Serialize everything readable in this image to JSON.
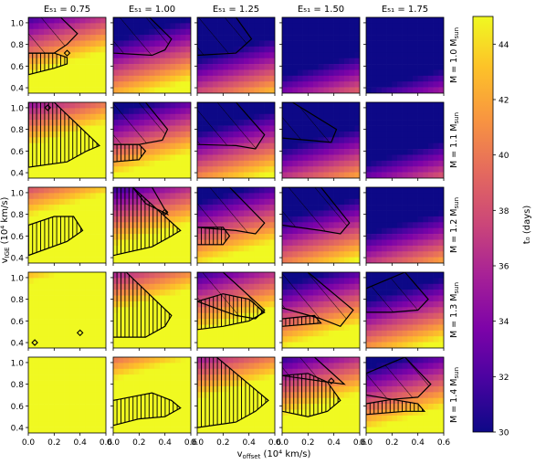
{
  "chart_data": {
    "type": "heatmap",
    "columns": [
      {
        "label": "E₅₁ = 0.75"
      },
      {
        "label": "E₅₁ = 1.00"
      },
      {
        "label": "E₅₁ = 1.25"
      },
      {
        "label": "E₅₁ = 1.50"
      },
      {
        "label": "E₅₁ = 1.75"
      }
    ],
    "rows": [
      {
        "label": "M = 1.0 M_sun"
      },
      {
        "label": "M = 1.1 M_sun"
      },
      {
        "label": "M = 1.2 M_sun"
      },
      {
        "label": "M = 1.3 M_sun"
      },
      {
        "label": "M = 1.4 M_sun"
      }
    ],
    "xlabel": "v_offset (10⁴ km/s)",
    "ylabel": "v_IGE (10⁴ km/s)",
    "xlim": [
      0.0,
      0.6
    ],
    "ylim": [
      0.35,
      1.05
    ],
    "xticks": [
      "0.0",
      "0.2",
      "0.4",
      "0.6"
    ],
    "yticks": [
      "0.4",
      "0.6",
      "0.8",
      "1.0"
    ],
    "colorbar": {
      "label": "t₀ (days)",
      "min": 30,
      "max": 45,
      "ticks": [
        "30",
        "32",
        "34",
        "36",
        "38",
        "40",
        "42",
        "44"
      ],
      "colormap": "plasma"
    },
    "grid": "off",
    "cell_pattern": "t0 increases with v_offset and decreases with v_IGE; higher E51 lowers t0 and higher M raises it; values clipped at 45 days (yellow)",
    "hatched_regions": "diagonal hatch = acceptable region for one constraint, vertical hatch = acceptable region for a second constraint"
  },
  "labels": {
    "col_0": "E₅₁ = 0.75",
    "col_1": "E₅₁ = 1.00",
    "col_2": "E₅₁ = 1.25",
    "col_3": "E₅₁ = 1.50",
    "col_4": "E₅₁ = 1.75",
    "row_0": "M = 1.0 M",
    "row_1": "M = 1.1 M",
    "row_2": "M = 1.2 M",
    "row_3": "M = 1.3 M",
    "row_4": "M = 1.4 M",
    "msun_sub": "sun",
    "xlabel_main": "v",
    "xlabel_sub": "offset",
    "xlabel_unit": " (10⁴ km/s)",
    "ylabel_main": "v",
    "ylabel_sub": "IGE",
    "ylabel_unit": " (10⁴ km/s)",
    "cbar_label": "t₀ (days)"
  }
}
